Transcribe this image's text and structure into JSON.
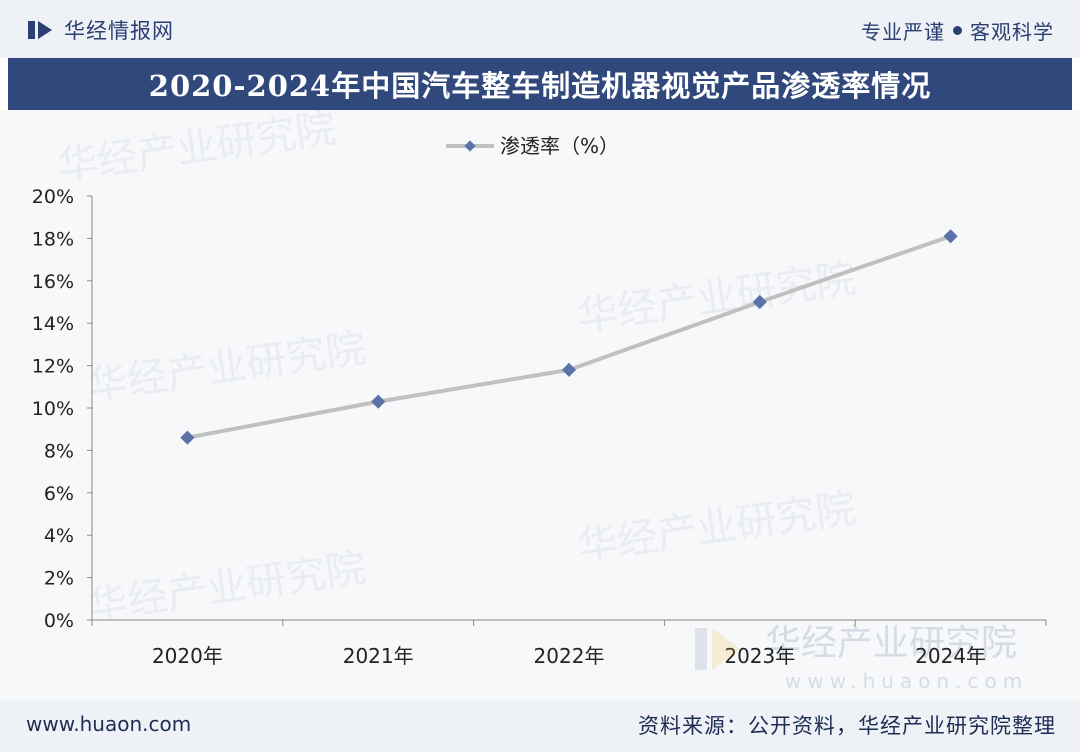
{
  "header": {
    "brand_name": "华经情报网",
    "motto_left": "专业严谨",
    "motto_right": "客观科学"
  },
  "title": "2020-2024年中国汽车整车制造机器视觉产品渗透率情况",
  "watermarks": {
    "org": "华经产业研究院",
    "url": "www.huaon.com"
  },
  "footer": {
    "url": "www.huaon.com",
    "source": "资料来源：公开资料，华经产业研究院整理"
  },
  "colors": {
    "line": "#c0c0c0",
    "marker": "#5b73a8",
    "title_bg": "#31487c",
    "bar_bg": "#eef1f6"
  },
  "chart_data": {
    "type": "line",
    "categories": [
      "2020年",
      "2021年",
      "2022年",
      "2023年",
      "2024年"
    ],
    "series": [
      {
        "name": "渗透率（%）",
        "values": [
          8.6,
          10.3,
          11.8,
          15.0,
          18.1
        ]
      }
    ],
    "ylim": [
      0,
      20
    ],
    "yticks": [
      0,
      2,
      4,
      6,
      8,
      10,
      12,
      14,
      16,
      18,
      20
    ],
    "ytick_labels": [
      "0%",
      "2%",
      "4%",
      "6%",
      "8%",
      "10%",
      "12%",
      "14%",
      "16%",
      "18%",
      "20%"
    ],
    "legend_position": "top-center",
    "grid": false
  }
}
